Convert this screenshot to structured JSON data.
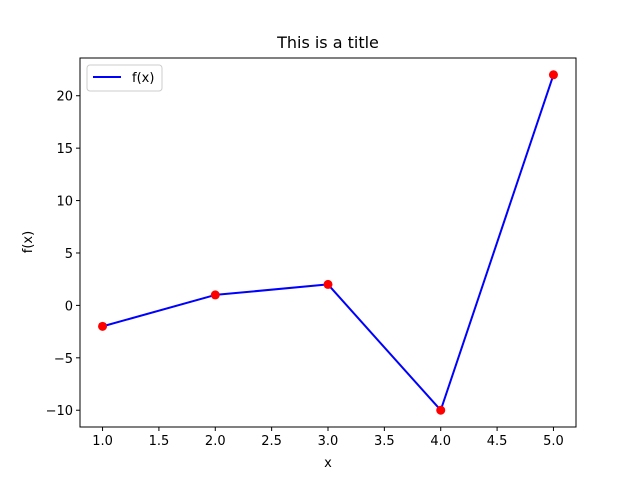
{
  "chart_data": {
    "type": "line",
    "title": "This is a title",
    "xlabel": "x",
    "ylabel": "f(x)",
    "x": [
      1,
      2,
      3,
      4,
      5
    ],
    "series": [
      {
        "name": "f(x)",
        "values": [
          -2,
          1,
          2,
          -10,
          22
        ],
        "color": "#0000ff",
        "marker_color": "#ff0000"
      }
    ],
    "xlim": [
      0.8,
      5.2
    ],
    "ylim": [
      -11.6,
      23.6
    ],
    "xticks": [
      1.0,
      1.5,
      2.0,
      2.5,
      3.0,
      3.5,
      4.0,
      4.5,
      5.0
    ],
    "xtick_labels": [
      "1.0",
      "1.5",
      "2.0",
      "2.5",
      "3.0",
      "3.5",
      "4.0",
      "4.5",
      "5.0"
    ],
    "yticks": [
      -10,
      -5,
      0,
      5,
      10,
      15,
      20
    ],
    "ytick_labels": [
      "−10",
      "−5",
      "0",
      "5",
      "10",
      "15",
      "20"
    ],
    "grid": false,
    "legend_position": "top-left"
  }
}
